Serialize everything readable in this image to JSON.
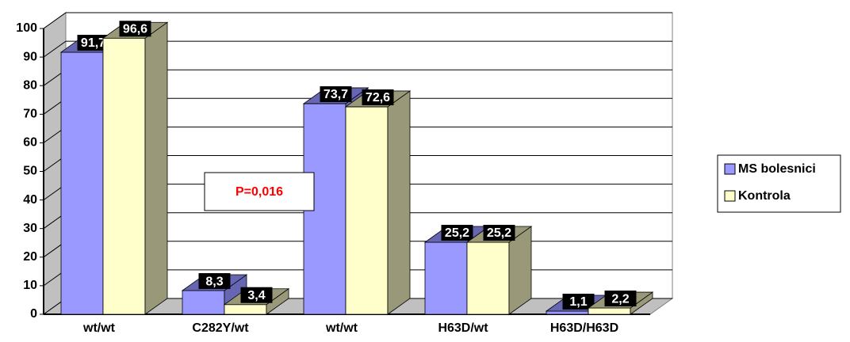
{
  "chart_data": {
    "type": "bar3d",
    "categories": [
      "wt/wt",
      "C282Y/wt",
      "wt/wt",
      "H63D/wt",
      "H63D/H63D"
    ],
    "series": [
      {
        "name": "MS bolesnici",
        "color": "#9999ff",
        "side_color": "#6666b3",
        "values": [
          91.7,
          8.3,
          73.7,
          25.2,
          1.1
        ],
        "value_labels": [
          "91,7",
          "8,3",
          "73,7",
          "25,2",
          "1,1"
        ]
      },
      {
        "name": "Kontrola",
        "color": "#ffffcc",
        "side_color": "#99997a",
        "values": [
          96.6,
          3.4,
          72.6,
          25.2,
          2.2
        ],
        "value_labels": [
          "96,6",
          "3,4",
          "72,6",
          "25,2",
          "2,2"
        ]
      }
    ],
    "ylim": [
      0,
      100
    ],
    "yticks": [
      0,
      10,
      20,
      30,
      40,
      50,
      60,
      70,
      80,
      90,
      100
    ],
    "grid": true,
    "legend": "right",
    "annotation": "P=0,016"
  }
}
